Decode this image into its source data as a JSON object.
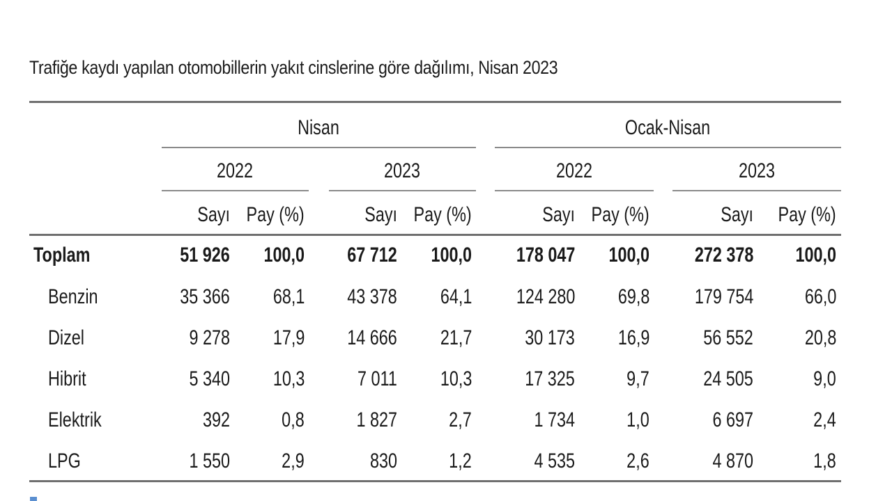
{
  "title": "Trafiğe kaydı yapılan otomobillerin yakıt cinslerine göre dağılımı, Nisan 2023",
  "groups": [
    "Nisan",
    "Ocak-Nisan"
  ],
  "years": [
    "2022",
    "2023",
    "2022",
    "2023"
  ],
  "subheaders": [
    "Sayı",
    "Pay (%)",
    "Sayı",
    "Pay (%)",
    "Sayı",
    "Pay (%)",
    "Sayı",
    "Pay (%)"
  ],
  "rows": [
    {
      "label": "Toplam",
      "bold": true,
      "values": [
        "51 926",
        "100,0",
        "67 712",
        "100,0",
        "178 047",
        "100,0",
        "272 378",
        "100,0"
      ]
    },
    {
      "label": "Benzin",
      "bold": false,
      "values": [
        "35 366",
        "68,1",
        "43 378",
        "64,1",
        "124 280",
        "69,8",
        "179 754",
        "66,0"
      ]
    },
    {
      "label": "Dizel",
      "bold": false,
      "values": [
        "9 278",
        "17,9",
        "14 666",
        "21,7",
        "30 173",
        "16,9",
        "56 552",
        "20,8"
      ]
    },
    {
      "label": "Hibrit",
      "bold": false,
      "values": [
        "5 340",
        "10,3",
        "7 011",
        "10,3",
        "17 325",
        "9,7",
        "24 505",
        "9,0"
      ]
    },
    {
      "label": "Elektrik",
      "bold": false,
      "values": [
        "392",
        "0,8",
        "1 827",
        "2,7",
        "1 734",
        "1,0",
        "6 697",
        "2,4"
      ]
    },
    {
      "label": "LPG",
      "bold": false,
      "values": [
        "1 550",
        "2,9",
        "830",
        "1,2",
        "4 535",
        "2,6",
        "4 870",
        "1,8"
      ]
    }
  ]
}
